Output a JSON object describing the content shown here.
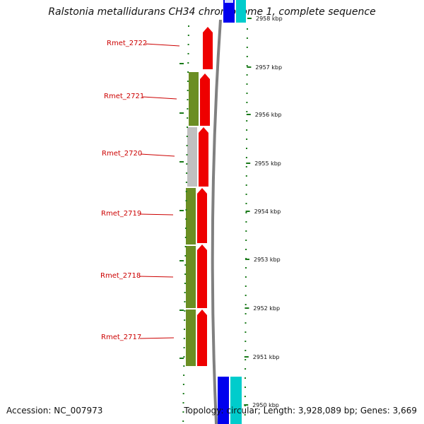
{
  "title": "Ralstonia metallidurans CH34 chromosome 1, complete sequence",
  "footer": {
    "accession": "Accession: NC_007973",
    "summary": "Topology: circular; Length: 3,928,089 bp; Genes: 3,669"
  },
  "colors": {
    "gene_feature": "#ee0000",
    "cog_green": "#6b8e23",
    "cog_gray": "#c0c0c0",
    "backbone": "#808080",
    "tick_green": "#1a7a1a",
    "blue_feature": "#0000ee",
    "cyan_feature": "#00cccc",
    "label_red": "#cc0000"
  },
  "genes": [
    {
      "name": "Rmet_2722"
    },
    {
      "name": "Rmet_2721"
    },
    {
      "name": "Rmet_2720"
    },
    {
      "name": "Rmet_2719"
    },
    {
      "name": "Rmet_2718"
    },
    {
      "name": "Rmet_2717"
    }
  ],
  "scale": {
    "labels": [
      "2958 kbp",
      "2957 kbp",
      "2956 kbp",
      "2955 kbp",
      "2954 kbp",
      "2953 kbp",
      "2952 kbp",
      "2951 kbp",
      "2950 kbp"
    ]
  }
}
